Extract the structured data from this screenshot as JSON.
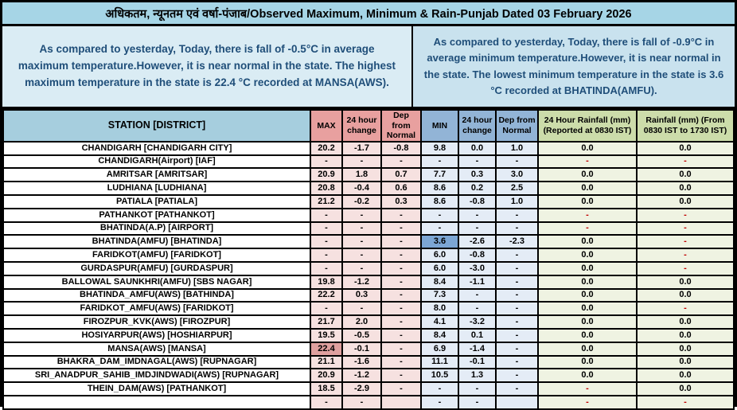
{
  "title": "अधिकतम, न्यूनतम एवं वर्षा-पंजाब/Observed Maximum, Minimum & Rain-Punjab Dated 03 February 2026",
  "summaries": {
    "max": "As compared to yesterday, Today, there is fall of -0.5°C in average maximum temperature.However, it is near normal in the state. The highest maximum temperature in the state is 22.4 °C recorded at MANSA(AWS).",
    "min": "As compared to yesterday, Today, there is fall of -0.9°C in average minimum temperature.However, it is near normal in the state. The lowest minimum temperature in the state is 3.6 °C recorded at BHATINDA(AMFU)."
  },
  "colors": {
    "title_bg": "#a6d5e6",
    "max_panel_bg": "#daecf4",
    "min_panel_bg": "#c9e2ee",
    "station_header_bg": "#a6cede",
    "max_header_bg": "#e8a09f",
    "min_header_bg": "#92b4d6",
    "rain_header_bg": "#ccdcaa",
    "max_cell_bg": "#f6e1e0",
    "min_cell_bg": "#e4ecf6",
    "rain_cell_bg": "#eff3e2",
    "highest_max_highlight": "#dfa09f",
    "lowest_min_highlight": "#7ca6d4",
    "summary_text": "#1f4e79",
    "missing_rain_dash": "#c00000"
  },
  "table": {
    "columns": [
      "STATION  [DISTRICT]",
      "MAX",
      "24 hour change",
      "Dep from Normal",
      "MIN",
      "24 hour change",
      "Dep from Normal",
      "24 Hour Rainfall (mm) (Reported at 0830 IST)",
      "Rainfall (mm) (From 0830 IST to 1730 IST)"
    ],
    "rows": [
      {
        "station": "CHANDIGARH  [CHANDIGARH CITY]",
        "max": "20.2",
        "max_chg": "-1.7",
        "max_dep": "-0.8",
        "min": "9.8",
        "min_chg": "0.0",
        "min_dep": "1.0",
        "rain_0830": "0.0",
        "rain_1730": "0.0",
        "highlight": ""
      },
      {
        "station": "CHANDIGARH(Airport)  [IAF]",
        "max": "-",
        "max_chg": "-",
        "max_dep": "-",
        "min": "-",
        "min_chg": "-",
        "min_dep": "-",
        "rain_0830": "-",
        "rain_1730": "-",
        "highlight": ""
      },
      {
        "station": "AMRITSAR  [AMRITSAR]",
        "max": "20.9",
        "max_chg": "1.8",
        "max_dep": "0.7",
        "min": "7.7",
        "min_chg": "0.3",
        "min_dep": "3.0",
        "rain_0830": "0.0",
        "rain_1730": "0.0",
        "highlight": ""
      },
      {
        "station": "LUDHIANA  [LUDHIANA]",
        "max": "20.8",
        "max_chg": "-0.4",
        "max_dep": "0.6",
        "min": "8.6",
        "min_chg": "0.2",
        "min_dep": "2.5",
        "rain_0830": "0.0",
        "rain_1730": "0.0",
        "highlight": ""
      },
      {
        "station": "PATIALA  [PATIALA]",
        "max": "21.2",
        "max_chg": "-0.2",
        "max_dep": "0.3",
        "min": "8.6",
        "min_chg": "-0.8",
        "min_dep": "1.0",
        "rain_0830": "0.0",
        "rain_1730": "0.0",
        "highlight": ""
      },
      {
        "station": "PATHANKOT  [PATHANKOT]",
        "max": "-",
        "max_chg": "-",
        "max_dep": "-",
        "min": "-",
        "min_chg": "-",
        "min_dep": "-",
        "rain_0830": "-",
        "rain_1730": "-",
        "highlight": ""
      },
      {
        "station": "BHATINDA(A.P)  [AIRPORT]",
        "max": "-",
        "max_chg": "-",
        "max_dep": "-",
        "min": "-",
        "min_chg": "-",
        "min_dep": "-",
        "rain_0830": "-",
        "rain_1730": "-",
        "highlight": ""
      },
      {
        "station": "BHATINDA(AMFU)  [BHATINDA]",
        "max": "-",
        "max_chg": "-",
        "max_dep": "-",
        "min": "3.6",
        "min_chg": "-2.6",
        "min_dep": "-2.3",
        "rain_0830": "0.0",
        "rain_1730": "-",
        "highlight": "min"
      },
      {
        "station": "FARIDKOT(AMFU)  [FARIDKOT]",
        "max": "-",
        "max_chg": "-",
        "max_dep": "-",
        "min": "6.0",
        "min_chg": "-0.8",
        "min_dep": "-",
        "rain_0830": "0.0",
        "rain_1730": "-",
        "highlight": ""
      },
      {
        "station": "GURDASPUR(AMFU)  [GURDASPUR]",
        "max": "-",
        "max_chg": "-",
        "max_dep": "-",
        "min": "6.0",
        "min_chg": "-3.0",
        "min_dep": "-",
        "rain_0830": "0.0",
        "rain_1730": "-",
        "highlight": ""
      },
      {
        "station": "BALLOWAL SAUNKHRI(AMFU)  [SBS NAGAR]",
        "max": "19.8",
        "max_chg": "-1.2",
        "max_dep": "-",
        "min": "8.4",
        "min_chg": "-1.1",
        "min_dep": "-",
        "rain_0830": "0.0",
        "rain_1730": "0.0",
        "highlight": ""
      },
      {
        "station": "BHATINDA_AMFU(AWS)  [BATHINDA]",
        "max": "22.2",
        "max_chg": "0.3",
        "max_dep": "-",
        "min": "7.3",
        "min_chg": "-",
        "min_dep": "-",
        "rain_0830": "0.0",
        "rain_1730": "0.0",
        "highlight": ""
      },
      {
        "station": "FARIDKOT_AMFU(AWS)  [FARIDKOT]",
        "max": "-",
        "max_chg": "-",
        "max_dep": "-",
        "min": "8.0",
        "min_chg": "-",
        "min_dep": "-",
        "rain_0830": "0.0",
        "rain_1730": "-",
        "highlight": ""
      },
      {
        "station": "FIROZPUR_KVK(AWS)  [FIROZPUR]",
        "max": "21.7",
        "max_chg": "2.0",
        "max_dep": "-",
        "min": "4.1",
        "min_chg": "-3.2",
        "min_dep": "-",
        "rain_0830": "0.0",
        "rain_1730": "0.0",
        "highlight": ""
      },
      {
        "station": "HOSIYARPUR(AWS)  [HOSHIARPUR]",
        "max": "19.5",
        "max_chg": "-0.5",
        "max_dep": "-",
        "min": "8.4",
        "min_chg": "0.1",
        "min_dep": "-",
        "rain_0830": "0.0",
        "rain_1730": "0.0",
        "highlight": ""
      },
      {
        "station": "MANSA(AWS)  [MANSA]",
        "max": "22.4",
        "max_chg": "-0.1",
        "max_dep": "-",
        "min": "6.9",
        "min_chg": "-1.4",
        "min_dep": "-",
        "rain_0830": "0.0",
        "rain_1730": "0.0",
        "highlight": "max"
      },
      {
        "station": "BHAKRA_DAM_IMDNAGAL(AWS)  [RUPNAGAR]",
        "max": "21.1",
        "max_chg": "-1.6",
        "max_dep": "-",
        "min": "11.1",
        "min_chg": "-0.1",
        "min_dep": "-",
        "rain_0830": "0.0",
        "rain_1730": "0.0",
        "highlight": ""
      },
      {
        "station": "SRI_ANADPUR_SAHIB_IMDJINDWADI(AWS)  [RUPNAGAR]",
        "max": "20.9",
        "max_chg": "-1.2",
        "max_dep": "-",
        "min": "10.5",
        "min_chg": "1.3",
        "min_dep": "-",
        "rain_0830": "0.0",
        "rain_1730": "0.0",
        "highlight": ""
      },
      {
        "station": "THEIN_DAM(AWS)  [PATHANKOT]",
        "max": "18.5",
        "max_chg": "-2.9",
        "max_dep": "-",
        "min": "-",
        "min_chg": "-",
        "min_dep": "-",
        "rain_0830": "-",
        "rain_1730": "0.0",
        "highlight": ""
      },
      {
        "station": "",
        "max": "-",
        "max_chg": "-",
        "max_dep": "",
        "min": "-",
        "min_chg": "-",
        "min_dep": "",
        "rain_0830": "-",
        "rain_1730": "-",
        "highlight": ""
      }
    ]
  }
}
